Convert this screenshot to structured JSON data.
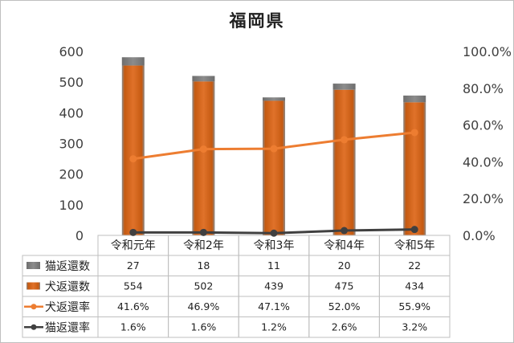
{
  "chart_data": {
    "type": "bar",
    "title": "福岡県",
    "categories": [
      "令和元年",
      "令和2年",
      "令和3年",
      "令和4年",
      "令和5年"
    ],
    "y_left": {
      "min": 0,
      "max": 600,
      "ticks": [
        0,
        100,
        200,
        300,
        400,
        500,
        600
      ]
    },
    "y_right": {
      "min": 0,
      "max": 1.0,
      "ticks": [
        "0.0%",
        "20.0%",
        "40.0%",
        "60.0%",
        "80.0%",
        "100.0%"
      ]
    },
    "series": [
      {
        "name": "猫返還数",
        "kind": "bar-stack",
        "axis": "left",
        "color": "#7f7f7f",
        "values": [
          27,
          18,
          11,
          20,
          22
        ],
        "labels": [
          "27",
          "18",
          "11",
          "20",
          "22"
        ]
      },
      {
        "name": "犬返還数",
        "kind": "bar-stack",
        "axis": "left",
        "color": "#c55a11",
        "values": [
          554,
          502,
          439,
          475,
          434
        ],
        "labels": [
          "554",
          "502",
          "439",
          "475",
          "434"
        ]
      },
      {
        "name": "犬返還率",
        "kind": "line",
        "axis": "right",
        "color": "#ed7d31",
        "values": [
          0.416,
          0.469,
          0.471,
          0.52,
          0.559
        ],
        "labels": [
          "41.6%",
          "46.9%",
          "47.1%",
          "52.0%",
          "55.9%"
        ]
      },
      {
        "name": "猫返還率",
        "kind": "line",
        "axis": "right",
        "color": "#404040",
        "values": [
          0.016,
          0.016,
          0.012,
          0.026,
          0.032
        ],
        "labels": [
          "1.6%",
          "1.6%",
          "1.2%",
          "2.6%",
          "3.2%"
        ]
      }
    ],
    "grid": false,
    "legend": "data-table"
  }
}
